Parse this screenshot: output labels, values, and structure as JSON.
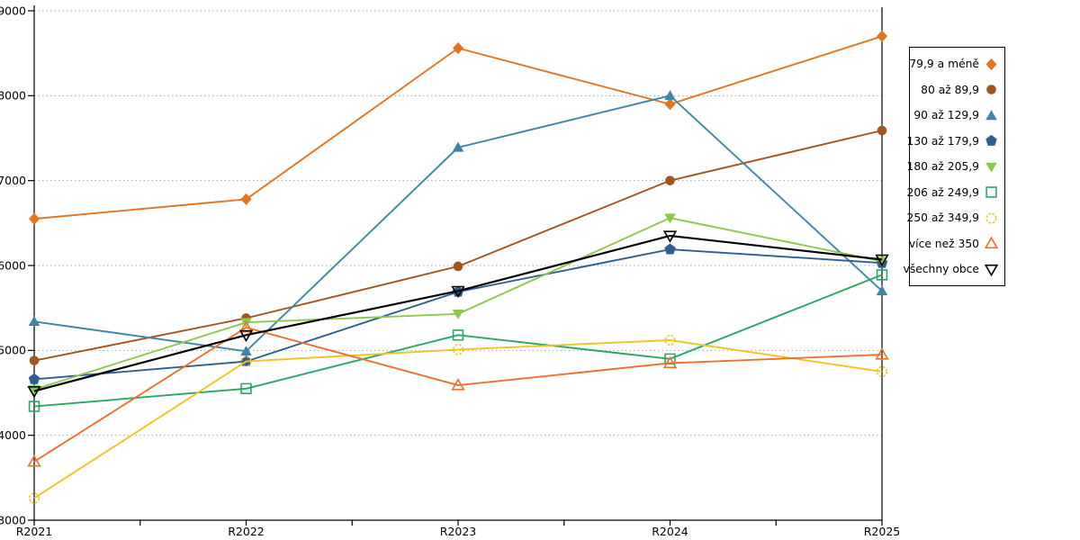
{
  "chart_data": {
    "type": "line",
    "title": "",
    "xlabel": "",
    "ylabel": "",
    "categories": [
      "R2021",
      "R2022",
      "R2023",
      "R2024",
      "R2025"
    ],
    "y_axis": {
      "min": 3000,
      "max": 9000,
      "step": 1000,
      "tick_labels": [
        "3000",
        "4000",
        "5000",
        "6000",
        "7000",
        "8000",
        "9000"
      ]
    },
    "grid": "horizontal dotted",
    "legend_position": "right",
    "series": [
      {
        "name": "79,9 a méně",
        "marker": "diamond",
        "fill": "filled",
        "dashed": false,
        "color": "#E2751E",
        "values": [
          6550,
          6780,
          8560,
          7900,
          8700
        ]
      },
      {
        "name": "80 až 89,9",
        "marker": "circle",
        "fill": "filled",
        "dashed": false,
        "color": "#A2551C",
        "values": [
          4880,
          5380,
          5990,
          7000,
          7590
        ]
      },
      {
        "name": "90 až 129,9",
        "marker": "triangle-up",
        "fill": "filled",
        "dashed": false,
        "color": "#3E87A4",
        "values": [
          5340,
          4990,
          7390,
          8000,
          5700
        ]
      },
      {
        "name": "130 až 179,9",
        "marker": "pentagon",
        "fill": "filled",
        "dashed": false,
        "color": "#2E5E8F",
        "values": [
          4660,
          4870,
          5690,
          6190,
          6030
        ]
      },
      {
        "name": "180 až 205,9",
        "marker": "triangle-down",
        "fill": "filled",
        "dashed": false,
        "color": "#8CC94B",
        "values": [
          4540,
          5330,
          5430,
          6560,
          6050
        ]
      },
      {
        "name": "206 až 249,9",
        "marker": "square",
        "fill": "open",
        "dashed": false,
        "color": "#27A765",
        "values": [
          4340,
          4550,
          5180,
          4900,
          5890
        ]
      },
      {
        "name": "250 až 349,9",
        "marker": "circle",
        "fill": "open",
        "dashed": true,
        "color": "#F2C224",
        "values": [
          3260,
          4870,
          5010,
          5120,
          4750
        ]
      },
      {
        "name": "více než 350",
        "marker": "triangle-up",
        "fill": "open",
        "dashed": false,
        "color": "#EE6F2E",
        "values": [
          3690,
          5270,
          4590,
          4850,
          4950
        ]
      },
      {
        "name": "všechny obce",
        "marker": "triangle-down",
        "fill": "open",
        "dashed": false,
        "color": "#000000",
        "values": [
          4520,
          5180,
          5700,
          6350,
          6070
        ]
      }
    ],
    "colors": {
      "axis": "#000000",
      "gridline": "#a6a6a6",
      "background": "#ffffff",
      "legend_border": "#000000"
    }
  }
}
